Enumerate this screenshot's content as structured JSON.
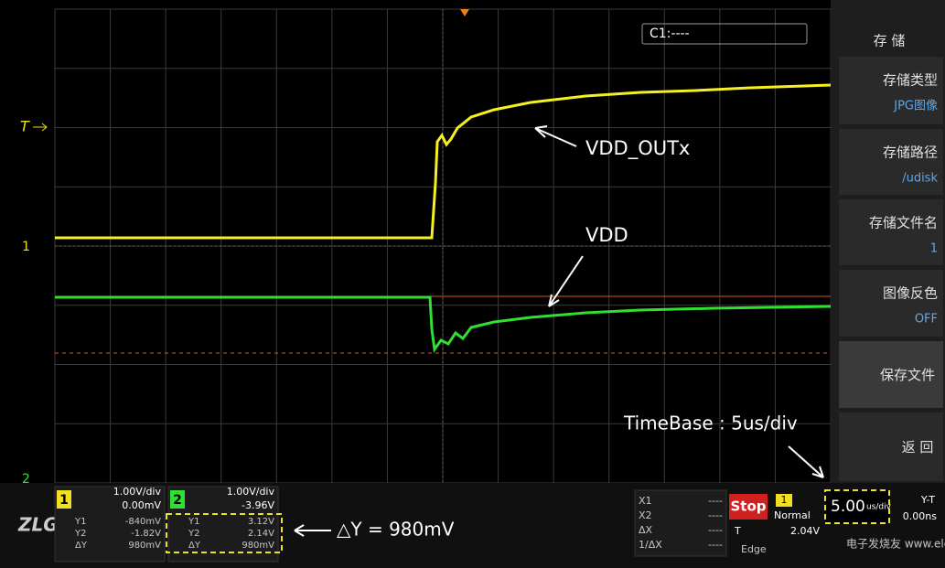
{
  "screen": {
    "cursor_label": "C1:----",
    "markers": {
      "trigger": "T",
      "ch1": "1",
      "ch2": "2"
    },
    "annotations": {
      "vdd_outx": "VDD_OUTx",
      "vdd": "VDD",
      "timebase": "TimeBase : 5us/div",
      "delta_y": "△Y = 980mV"
    },
    "menu": {
      "title": "存 储",
      "items": [
        {
          "label": "存储类型",
          "value": "JPG图像"
        },
        {
          "label": "存储路径",
          "value": "/udisk"
        },
        {
          "label": "存储文件名",
          "value": "1"
        },
        {
          "label": "图像反色",
          "value": "OFF"
        },
        {
          "label": "保存文件"
        },
        {
          "label": "返 回"
        }
      ]
    },
    "channels": [
      {
        "number": "1",
        "scale": "1.00V/div",
        "offset": "0.00mV",
        "y1_label": "Y1",
        "y1": "-840mV",
        "y2_label": "Y2",
        "y2": "-1.82V",
        "dy_label": "ΔY",
        "dy": "980mV"
      },
      {
        "number": "2",
        "scale": "1.00V/div",
        "offset": "-3.96V",
        "y1_label": "Y1",
        "y1": "3.12V",
        "y2_label": "Y2",
        "y2": "2.14V",
        "dy_label": "ΔY",
        "dy": "980mV"
      }
    ],
    "cursors": [
      {
        "label": "X1",
        "value": "----"
      },
      {
        "label": "X2",
        "value": "----"
      },
      {
        "label": "ΔX",
        "value": "----"
      },
      {
        "label": "1/ΔX",
        "value": "----"
      }
    ],
    "run_state": "Stop",
    "trigger": {
      "channel": "1",
      "mode": "Normal",
      "source_label": "T",
      "level": "2.04V",
      "type": "Edge"
    },
    "timebase": {
      "value": "5.00",
      "unit": "us/div"
    },
    "mode": {
      "name": "Y-T",
      "delay": "0.00ns"
    },
    "logo": "ZLG",
    "watermark": "电子发烧友 www.elecfans.com"
  }
}
